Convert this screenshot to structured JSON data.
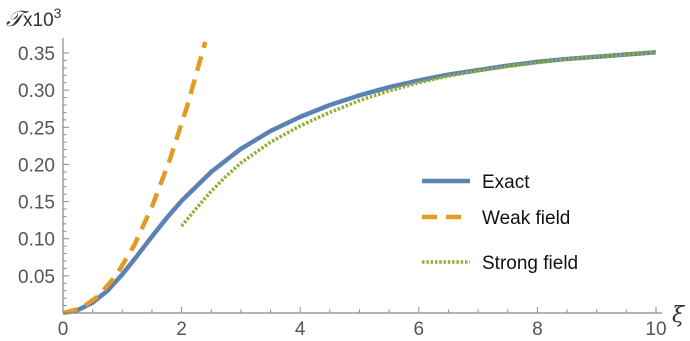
{
  "chart_data": {
    "type": "line",
    "xlabel": "ξ",
    "ylabel": "𝒯",
    "ylabel_unit": "x10",
    "ylabel_exponent": "3",
    "xlim": [
      0,
      10.1
    ],
    "ylim": [
      0,
      0.37
    ],
    "x_ticks": [
      0,
      2,
      4,
      6,
      8,
      10
    ],
    "x_tick_labels": [
      "0",
      "2",
      "4",
      "6",
      "8",
      "10"
    ],
    "y_ticks": [
      0.05,
      0.1,
      0.15,
      0.2,
      0.25,
      0.3,
      0.35
    ],
    "y_tick_labels": [
      "0.05",
      "0.10",
      "0.15",
      "0.20",
      "0.25",
      "0.30",
      "0.35"
    ],
    "legend_position": "right",
    "grid": false,
    "series": [
      {
        "name": "Exact",
        "color": "#5e81b5",
        "style": "solid",
        "x": [
          0,
          0.25,
          0.5,
          0.75,
          1,
          1.25,
          1.5,
          1.75,
          2,
          2.5,
          3,
          3.5,
          4,
          4.5,
          5,
          5.5,
          6,
          6.5,
          7,
          7.5,
          8,
          8.5,
          9,
          9.5,
          10
        ],
        "y": [
          0,
          0.004,
          0.014,
          0.03,
          0.052,
          0.077,
          0.103,
          0.128,
          0.151,
          0.19,
          0.221,
          0.245,
          0.264,
          0.28,
          0.293,
          0.304,
          0.313,
          0.321,
          0.327,
          0.333,
          0.338,
          0.342,
          0.345,
          0.348,
          0.351
        ]
      },
      {
        "name": "Weak field",
        "color": "#e19c24",
        "style": "dashed",
        "x": [
          0,
          0.3,
          0.6,
          0.9,
          1.2,
          1.5,
          1.8,
          2.1,
          2.4
        ],
        "y": [
          0,
          0.006,
          0.023,
          0.051,
          0.091,
          0.143,
          0.206,
          0.28,
          0.365
        ]
      },
      {
        "name": "Strong field",
        "color": "#8fb032",
        "style": "dotted",
        "x": [
          2,
          2.25,
          2.5,
          2.75,
          3,
          3.5,
          4,
          4.5,
          5,
          5.5,
          6,
          6.5,
          7,
          7.5,
          8,
          8.5,
          9,
          9.5,
          10
        ],
        "y": [
          0.117,
          0.141,
          0.164,
          0.184,
          0.202,
          0.23,
          0.252,
          0.27,
          0.286,
          0.299,
          0.31,
          0.319,
          0.326,
          0.332,
          0.337,
          0.342,
          0.345,
          0.348,
          0.351
        ]
      }
    ]
  }
}
